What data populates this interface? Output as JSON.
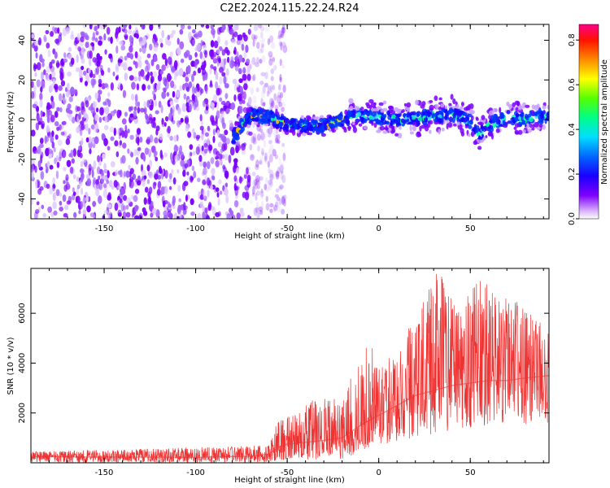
{
  "chart_data": [
    {
      "type": "heatmap",
      "title": "C2E2.2024.115.22.24.R24",
      "xlabel": "Height of straight line (km)",
      "ylabel": "Frequency (Hz)",
      "xlim": [
        -190,
        93
      ],
      "ylim": [
        -50,
        48
      ],
      "xticks": [
        -150,
        -100,
        -50,
        0,
        50
      ],
      "yticks": [
        -40,
        -20,
        0,
        20,
        40
      ],
      "grid": false,
      "colorbar": {
        "label": "Normalized spectral amplitude",
        "range": [
          0,
          0.87
        ],
        "ticks": [
          0.0,
          0.2,
          0.4,
          0.6,
          0.8
        ],
        "colormap": [
          "#ffffff",
          "#cc99ff",
          "#7f00ff",
          "#0000ff",
          "#00aaff",
          "#00ffaa",
          "#66ff00",
          "#ffff00",
          "#ff8800",
          "#ff0000",
          "#ff0088"
        ]
      },
      "signal_trace": {
        "x": [
          -80,
          -75,
          -70,
          -60,
          -50,
          -40,
          -30,
          -20,
          -10,
          0,
          10,
          20,
          30,
          40,
          50,
          55,
          60,
          70,
          80,
          90
        ],
        "y": [
          -10,
          -3,
          2,
          1,
          -2,
          -3,
          -3,
          0,
          2,
          1,
          0,
          1,
          2,
          3,
          -1,
          -8,
          -3,
          1,
          0,
          2
        ]
      },
      "noise_region": {
        "x_from": -190,
        "x_to": -57,
        "level": "low, broadband"
      }
    },
    {
      "type": "line",
      "title": "",
      "xlabel": "Height of straight line (km)",
      "ylabel": "SNR (10 * v/v)",
      "xlim": [
        -190,
        93
      ],
      "ylim": [
        0,
        7800
      ],
      "xticks": [
        -150,
        -100,
        -50,
        0,
        50
      ],
      "yticks": [
        2000,
        4000,
        6000
      ],
      "grid": false,
      "series": [
        {
          "color": "#ee3333",
          "x": [
            -190,
            -150,
            -100,
            -70,
            -60,
            -55,
            -50,
            -40,
            -30,
            -20,
            -10,
            0,
            10,
            20,
            30,
            40,
            50,
            60,
            70,
            80,
            93
          ],
          "y": [
            250,
            230,
            220,
            260,
            350,
            600,
            750,
            820,
            900,
            1000,
            1500,
            1900,
            2300,
            2700,
            2900,
            3100,
            3200,
            3300,
            3300,
            3400,
            3500
          ]
        }
      ],
      "envelope_max": {
        "x": [
          -190,
          -60,
          -55,
          -45,
          -35,
          -20,
          -5,
          0,
          10,
          25,
          33,
          45,
          55,
          65,
          75,
          85,
          93
        ],
        "y": [
          450,
          700,
          1800,
          2000,
          2600,
          2600,
          5200,
          3800,
          4600,
          6600,
          7800,
          6400,
          7400,
          6800,
          6500,
          5800,
          5500
        ]
      },
      "envelope_min": {
        "x": [
          -190,
          -60,
          -55,
          -20,
          0,
          20,
          40,
          60,
          93
        ],
        "y": [
          0,
          0,
          100,
          150,
          700,
          1000,
          1300,
          1500,
          1600
        ]
      }
    }
  ]
}
